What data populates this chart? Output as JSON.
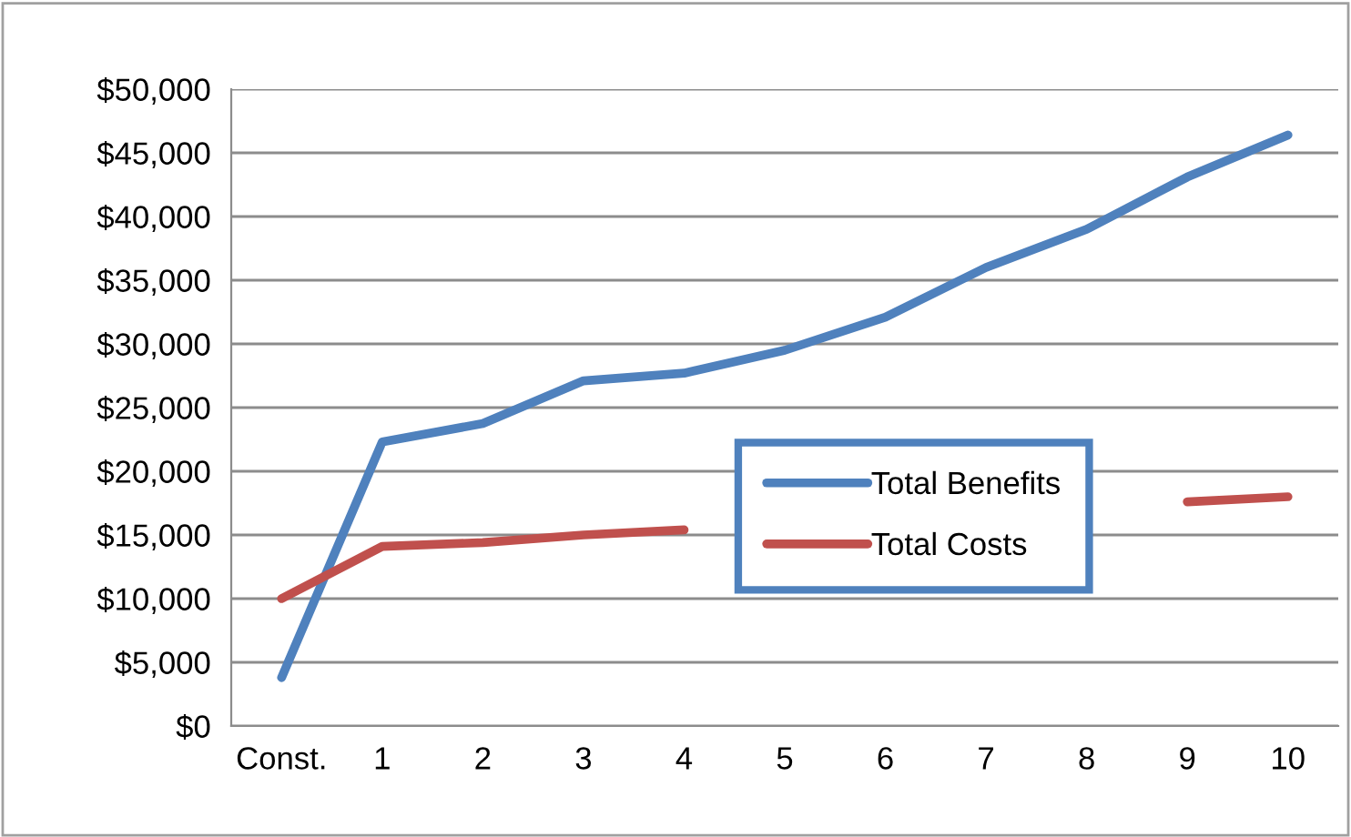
{
  "chart_data": {
    "type": "line",
    "categories": [
      "Const.",
      "1",
      "2",
      "3",
      "4",
      "5",
      "6",
      "7",
      "8",
      "9",
      "10"
    ],
    "series": [
      {
        "name": "Total Benefits",
        "color": "#4f81bd",
        "values": [
          3800,
          22300,
          23750,
          27100,
          27700,
          29500,
          32100,
          36000,
          39000,
          43100,
          46400
        ]
      },
      {
        "name": "Total Costs",
        "color": "#c0504d",
        "values": [
          10000,
          14100,
          14400,
          15000,
          15400,
          null,
          null,
          null,
          null,
          17600,
          18000
        ]
      }
    ],
    "ylim": [
      0,
      50000
    ],
    "yticks": [
      {
        "value": 0,
        "label": "$0"
      },
      {
        "value": 5000,
        "label": "$5,000"
      },
      {
        "value": 10000,
        "label": "$10,000"
      },
      {
        "value": 15000,
        "label": "$15,000"
      },
      {
        "value": 20000,
        "label": "$20,000"
      },
      {
        "value": 25000,
        "label": "$25,000"
      },
      {
        "value": 30000,
        "label": "$30,000"
      },
      {
        "value": 35000,
        "label": "$35,000"
      },
      {
        "value": 40000,
        "label": "$40,000"
      },
      {
        "value": 45000,
        "label": "$45,000"
      },
      {
        "value": 50000,
        "label": "$50,000"
      }
    ],
    "grid": "y",
    "legend": "center",
    "marker": "none",
    "line_style": "solid"
  }
}
